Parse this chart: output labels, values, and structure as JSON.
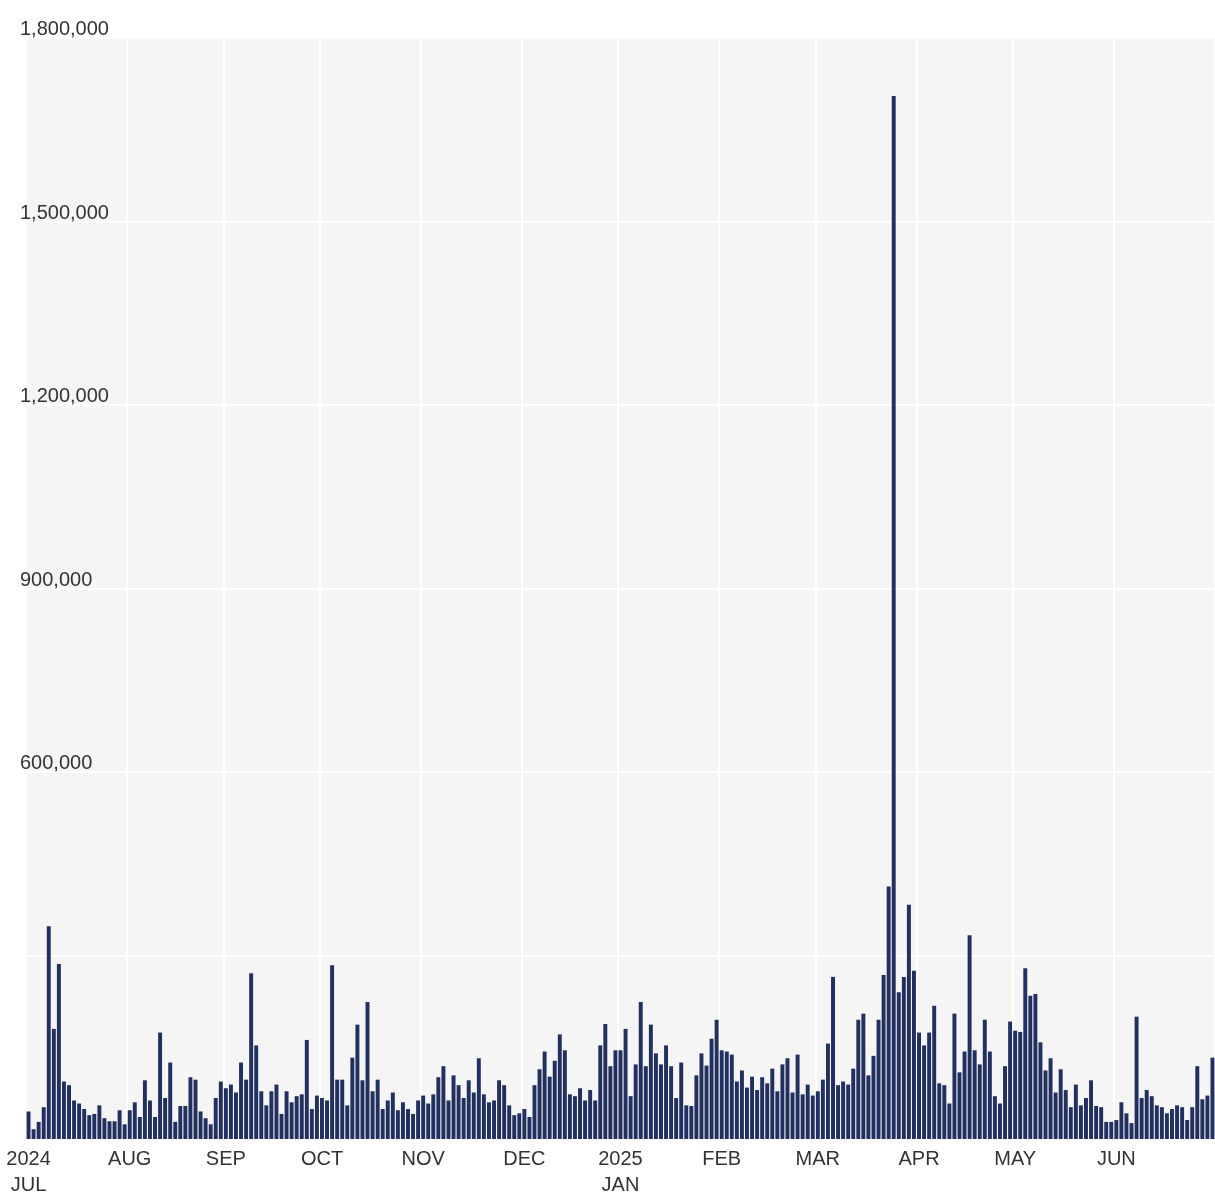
{
  "chart_data": {
    "type": "bar",
    "categories": [
      "2024\nJUL",
      null,
      null,
      null,
      null,
      null,
      null,
      null,
      null,
      null,
      null,
      null,
      null,
      null,
      null,
      null,
      null,
      null,
      null,
      null,
      "AUG",
      null,
      null,
      null,
      null,
      null,
      null,
      null,
      null,
      null,
      null,
      null,
      null,
      null,
      null,
      null,
      null,
      null,
      null,
      "SEP",
      null,
      null,
      null,
      null,
      null,
      null,
      null,
      null,
      null,
      null,
      null,
      null,
      null,
      null,
      null,
      null,
      null,
      null,
      "OCT",
      null,
      null,
      null,
      null,
      null,
      null,
      null,
      null,
      null,
      null,
      null,
      null,
      null,
      null,
      null,
      null,
      null,
      null,
      null,
      "NOV",
      null,
      null,
      null,
      null,
      null,
      null,
      null,
      null,
      null,
      null,
      null,
      null,
      null,
      null,
      null,
      null,
      null,
      null,
      null,
      "DEC",
      null,
      null,
      null,
      null,
      null,
      null,
      null,
      null,
      null,
      null,
      null,
      null,
      null,
      null,
      null,
      null,
      null,
      null,
      "2025\nJAN",
      null,
      null,
      null,
      null,
      null,
      null,
      null,
      null,
      null,
      null,
      null,
      null,
      null,
      null,
      null,
      null,
      null,
      null,
      null,
      "FEB",
      null,
      null,
      null,
      null,
      null,
      null,
      null,
      null,
      null,
      null,
      null,
      null,
      null,
      null,
      null,
      null,
      null,
      null,
      "MAR",
      null,
      null,
      null,
      null,
      null,
      null,
      null,
      null,
      null,
      null,
      null,
      null,
      null,
      null,
      null,
      null,
      null,
      null,
      null,
      "APR",
      null,
      null,
      null,
      null,
      null,
      null,
      null,
      null,
      null,
      null,
      null,
      null,
      null,
      null,
      null,
      null,
      null,
      null,
      "MAY",
      null,
      null,
      null,
      null,
      null,
      null,
      null,
      null,
      null,
      null,
      null,
      null,
      null,
      null,
      null,
      null,
      null,
      null,
      null,
      "JUN",
      null,
      null,
      null,
      null,
      null,
      null,
      null,
      null,
      null,
      null,
      null,
      null,
      null,
      null,
      null,
      null,
      null,
      null,
      null
    ],
    "values": [
      45000,
      16000,
      28000,
      52000,
      348000,
      180000,
      286000,
      94000,
      88000,
      63000,
      58000,
      49000,
      39000,
      41000,
      55000,
      34000,
      29000,
      29000,
      47000,
      24000,
      47000,
      60000,
      36000,
      96000,
      63000,
      36000,
      174000,
      67000,
      125000,
      28000,
      54000,
      54000,
      101000,
      97000,
      45000,
      34000,
      24000,
      67000,
      94000,
      83000,
      89000,
      76000,
      125000,
      97000,
      271000,
      153000,
      78000,
      55000,
      78000,
      89000,
      41000,
      78000,
      60000,
      70000,
      73000,
      162000,
      49000,
      71000,
      67000,
      63000,
      284000,
      97000,
      97000,
      55000,
      133000,
      187000,
      96000,
      224000,
      78000,
      97000,
      49000,
      63000,
      76000,
      47000,
      60000,
      49000,
      41000,
      63000,
      71000,
      58000,
      73000,
      101000,
      119000,
      63000,
      104000,
      88000,
      67000,
      96000,
      76000,
      132000,
      73000,
      60000,
      63000,
      96000,
      88000,
      55000,
      39000,
      42000,
      49000,
      36000,
      88000,
      114000,
      143000,
      102000,
      128000,
      171000,
      145000,
      73000,
      70000,
      83000,
      63000,
      80000,
      63000,
      153000,
      188000,
      119000,
      145000,
      145000,
      180000,
      70000,
      122000,
      224000,
      119000,
      187000,
      140000,
      122000,
      153000,
      119000,
      67000,
      125000,
      55000,
      54000,
      104000,
      140000,
      120000,
      164000,
      195000,
      145000,
      143000,
      138000,
      94000,
      112000,
      84000,
      102000,
      80000,
      101000,
      91000,
      115000,
      78000,
      122000,
      132000,
      76000,
      138000,
      73000,
      89000,
      71000,
      78000,
      97000,
      156000,
      265000,
      88000,
      94000,
      89000,
      115000,
      195000,
      205000,
      104000,
      136000,
      195000,
      268000,
      413000,
      1705000,
      240000,
      265000,
      383000,
      275000,
      174000,
      153000,
      174000,
      218000,
      91000,
      88000,
      58000,
      205000,
      109000,
      143000,
      333000,
      145000,
      122000,
      195000,
      143000,
      70000,
      58000,
      119000,
      192000,
      177000,
      175000,
      279000,
      234000,
      237000,
      158000,
      112000,
      132000,
      76000,
      114000,
      80000,
      52000,
      89000,
      55000,
      67000,
      96000,
      54000,
      52000,
      28000,
      28000,
      31000,
      60000,
      42000,
      26000,
      200000,
      67000,
      80000,
      70000,
      55000,
      52000,
      42000,
      49000,
      55000,
      52000,
      31000,
      52000,
      119000,
      65000,
      71000,
      133000
    ],
    "color": "#22305f",
    "ylim": [
      0,
      1800000
    ],
    "yticks": [
      {
        "value": 0,
        "label": null
      },
      {
        "value": 300000,
        "label": null
      },
      {
        "value": 600000,
        "label": "600,000"
      },
      {
        "value": 900000,
        "label": "900,000"
      },
      {
        "value": 1200000,
        "label": "1,200,000"
      },
      {
        "value": 1500000,
        "label": "1,500,000"
      },
      {
        "value": 1800000,
        "label": "1,800,000"
      }
    ],
    "grid": true
  }
}
